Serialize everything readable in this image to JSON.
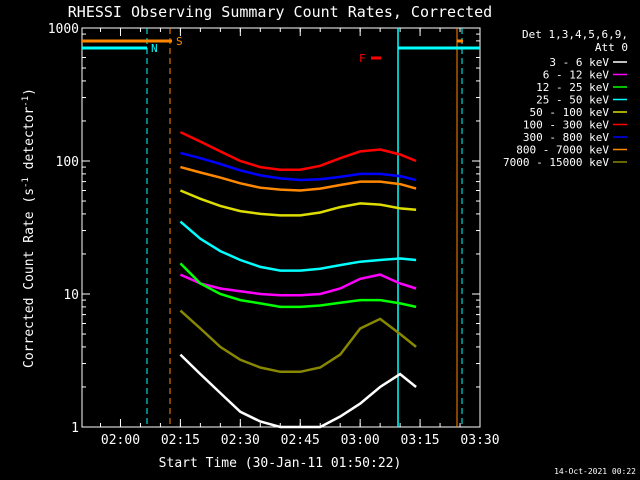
{
  "chart_data": {
    "type": "line",
    "title": "RHESSI Observing Summary Count Rates, Corrected",
    "xlabel": "Start Time (30-Jan-11 01:50:22)",
    "ylabel": "Corrected Count Rate (s⁻¹ detector⁻¹)",
    "ylabel_parts": {
      "main": "Corrected Count Rate (s",
      "exp1": "-1",
      "mid": " detector",
      "exp2": "-1",
      "end": ")"
    },
    "xlim": [
      "01:50:22",
      "03:30"
    ],
    "ylim": [
      1,
      1000
    ],
    "yscale": "log",
    "x_ticks": [
      "02:00",
      "02:15",
      "02:30",
      "02:45",
      "03:00",
      "03:15",
      "03:30"
    ],
    "y_ticks": [
      "1",
      "10",
      "100",
      "1000"
    ],
    "grid": false,
    "legend_title": [
      "Det 1,3,4,5,6,9,",
      "Att 0"
    ],
    "legend_position": "right",
    "footer": "14-Oct-2021 00:22",
    "markers": {
      "N": "N",
      "S": "S",
      "F": "F"
    },
    "series": [
      {
        "name": "3 - 6 keV",
        "color": "#ffffff",
        "x": [
          "02:15",
          "02:20",
          "02:25",
          "02:30",
          "02:35",
          "02:40",
          "02:45",
          "02:50",
          "02:55",
          "03:00",
          "03:05",
          "03:10",
          "03:14"
        ],
        "values": [
          3.5,
          2.5,
          1.8,
          1.3,
          1.1,
          1.0,
          1.0,
          1.0,
          1.2,
          1.5,
          2.0,
          2.5,
          2.0
        ]
      },
      {
        "name": "6 - 12 keV",
        "color": "#ff00ff",
        "x": [
          "02:15",
          "02:20",
          "02:25",
          "02:30",
          "02:35",
          "02:40",
          "02:45",
          "02:50",
          "02:55",
          "03:00",
          "03:05",
          "03:10",
          "03:14"
        ],
        "values": [
          14,
          12,
          11,
          10.5,
          10,
          9.8,
          9.8,
          10,
          11,
          13,
          14,
          12,
          11
        ]
      },
      {
        "name": "12 - 25 keV",
        "color": "#00ff00",
        "x": [
          "02:15",
          "02:20",
          "02:25",
          "02:30",
          "02:35",
          "02:40",
          "02:45",
          "02:50",
          "02:55",
          "03:00",
          "03:05",
          "03:10",
          "03:14"
        ],
        "values": [
          17,
          12,
          10,
          9,
          8.5,
          8,
          8,
          8.2,
          8.6,
          9,
          9,
          8.5,
          8
        ]
      },
      {
        "name": "25 - 50 keV",
        "color": "#00ffff",
        "x": [
          "02:15",
          "02:20",
          "02:25",
          "02:30",
          "02:35",
          "02:40",
          "02:45",
          "02:50",
          "02:55",
          "03:00",
          "03:05",
          "03:10",
          "03:14"
        ],
        "values": [
          35,
          26,
          21,
          18,
          16,
          15,
          15,
          15.5,
          16.5,
          17.5,
          18,
          18.5,
          18
        ]
      },
      {
        "name": "50 - 100 keV",
        "color": "#dddd00",
        "x": [
          "02:15",
          "02:20",
          "02:25",
          "02:30",
          "02:35",
          "02:40",
          "02:45",
          "02:50",
          "02:55",
          "03:00",
          "03:05",
          "03:10",
          "03:14"
        ],
        "values": [
          60,
          52,
          46,
          42,
          40,
          39,
          39,
          41,
          45,
          48,
          47,
          44,
          43
        ]
      },
      {
        "name": "100 - 300 keV",
        "color": "#ff0000",
        "x": [
          "02:15",
          "02:20",
          "02:25",
          "02:30",
          "02:35",
          "02:40",
          "02:45",
          "02:50",
          "02:55",
          "03:00",
          "03:05",
          "03:10",
          "03:14"
        ],
        "values": [
          165,
          140,
          118,
          100,
          90,
          86,
          86,
          92,
          105,
          118,
          122,
          112,
          100
        ]
      },
      {
        "name": "300 - 800 keV",
        "color": "#0000ff",
        "x": [
          "02:15",
          "02:20",
          "02:25",
          "02:30",
          "02:35",
          "02:40",
          "02:45",
          "02:50",
          "02:55",
          "03:00",
          "03:05",
          "03:10",
          "03:14"
        ],
        "values": [
          115,
          105,
          95,
          85,
          78,
          74,
          72,
          73,
          76,
          80,
          80,
          77,
          72
        ]
      },
      {
        "name": "800 - 7000 keV",
        "color": "#ff8800",
        "x": [
          "02:15",
          "02:20",
          "02:25",
          "02:30",
          "02:35",
          "02:40",
          "02:45",
          "02:50",
          "02:55",
          "03:00",
          "03:05",
          "03:10",
          "03:14"
        ],
        "values": [
          90,
          82,
          75,
          68,
          63,
          61,
          60,
          62,
          66,
          70,
          70,
          67,
          62
        ]
      },
      {
        "name": "7000 - 15000 keV",
        "color": "#888800",
        "x": [
          "02:15",
          "02:20",
          "02:25",
          "02:30",
          "02:35",
          "02:40",
          "02:45",
          "02:50",
          "02:55",
          "03:00",
          "03:05",
          "03:10",
          "03:14"
        ],
        "values": [
          7.5,
          5.5,
          4,
          3.2,
          2.8,
          2.6,
          2.6,
          2.8,
          3.5,
          5.5,
          6.5,
          5,
          4
        ]
      }
    ]
  }
}
